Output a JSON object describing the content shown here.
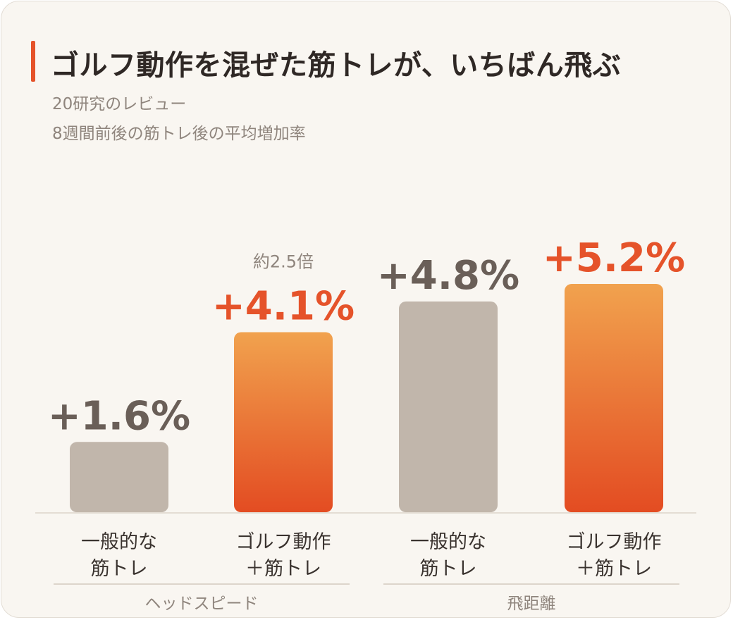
{
  "title": "ゴルフ動作を混ぜた筋トレが、いちばん飛ぶ",
  "subtitle_line1": "20研究のレビュー",
  "subtitle_line2": "8週間前後の筋トレ後の平均増加率",
  "colors": {
    "accent": "#e5532a",
    "gray_bar": "#c1b6ab",
    "gray_text": "#6a5f58",
    "orange_top": "#f1a24e",
    "orange_bottom": "#e34c22"
  },
  "chart_data": {
    "type": "bar",
    "title": "ゴルフ動作を混ぜた筋トレが、いちばん飛ぶ",
    "ylim": [
      0,
      5.2
    ],
    "grid": false,
    "groups": [
      {
        "label": "ヘッドスピード",
        "bars": [
          {
            "category": [
              "一般的な",
              "筋トレ"
            ],
            "value": 1.6,
            "label": "+1.6%",
            "highlight": false
          },
          {
            "category": [
              "ゴルフ動作",
              "＋筋トレ"
            ],
            "value": 4.1,
            "label": "+4.1%",
            "highlight": true,
            "annotation": "約2.5倍"
          }
        ]
      },
      {
        "label": "飛距離",
        "bars": [
          {
            "category": [
              "一般的な",
              "筋トレ"
            ],
            "value": 4.8,
            "label": "+4.8%",
            "highlight": false
          },
          {
            "category": [
              "ゴルフ動作",
              "＋筋トレ"
            ],
            "value": 5.2,
            "label": "+5.2%",
            "highlight": true
          }
        ]
      }
    ]
  }
}
